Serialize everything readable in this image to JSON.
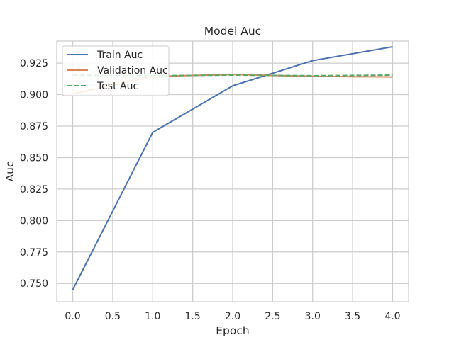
{
  "chart_data": {
    "type": "line",
    "title": "Model Auc",
    "xlabel": "Epoch",
    "ylabel": "Auc",
    "x": [
      0,
      1,
      2,
      3,
      4
    ],
    "xlim": [
      -0.2,
      4.2
    ],
    "ylim": [
      0.7355,
      0.9425
    ],
    "xticks": [
      0.0,
      0.5,
      1.0,
      1.5,
      2.0,
      2.5,
      3.0,
      3.5,
      4.0
    ],
    "xtick_labels": [
      "0.0",
      "0.5",
      "1.0",
      "1.5",
      "2.0",
      "2.5",
      "3.0",
      "3.5",
      "4.0"
    ],
    "yticks": [
      0.75,
      0.775,
      0.8,
      0.825,
      0.85,
      0.875,
      0.9,
      0.925
    ],
    "ytick_labels": [
      "0.750",
      "0.775",
      "0.800",
      "0.825",
      "0.850",
      "0.875",
      "0.900",
      "0.925"
    ],
    "grid": true,
    "legend_position": "top-left",
    "series": [
      {
        "name": "Train Auc",
        "values": [
          0.745,
          0.87,
          0.907,
          0.927,
          0.938
        ],
        "color": "#4c72b0",
        "dash": "solid"
      },
      {
        "name": "Validation Auc",
        "values": [
          0.9005,
          0.9145,
          0.916,
          0.9145,
          0.914
        ],
        "color": "#dd8452",
        "dash": "solid"
      },
      {
        "name": "Test Auc",
        "values": [
          0.9155,
          0.915,
          0.9155,
          0.915,
          0.9155
        ],
        "color": "#55a868",
        "dash": "dashed"
      }
    ]
  }
}
